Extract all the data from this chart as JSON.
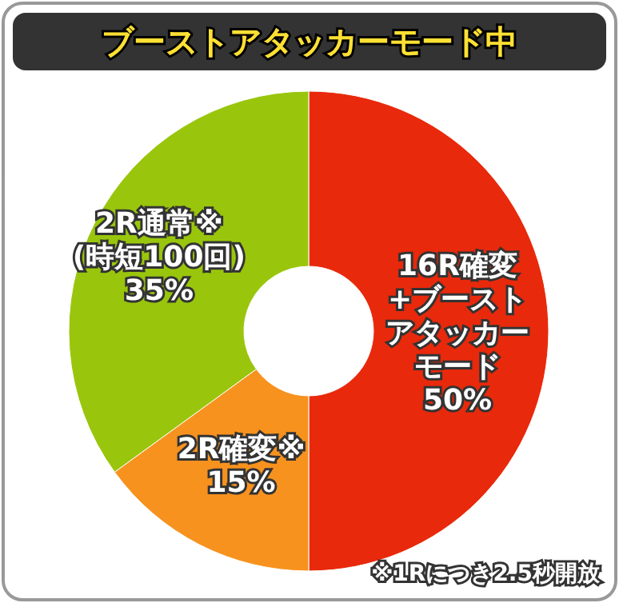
{
  "chart_data": {
    "type": "donut",
    "title": "ブーストアタッカーモード中",
    "categories": [
      "16R確変+ブーストアタッカーモード",
      "2R確変※",
      "2R通常※(時短100回)"
    ],
    "values": [
      50,
      15,
      35
    ],
    "colors": [
      "#e8290b",
      "#f7921e",
      "#99c60c"
    ],
    "value_labels": [
      "50%",
      "15%",
      "35%"
    ],
    "annotations": [
      "※1Rにつき2.5秒開放"
    ]
  }
}
